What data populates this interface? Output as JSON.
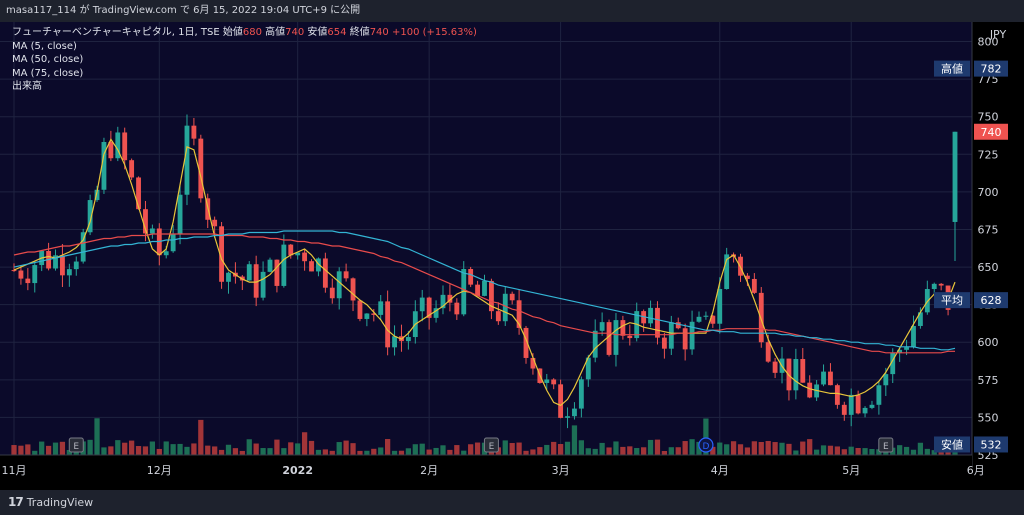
{
  "header": {
    "user": "masa117_114",
    "text_mid": " が ",
    "site": "TradingView.com",
    "text_end": " で 6月 15, 2022 19:04 UTC+9 に公開"
  },
  "legend": {
    "symbol": "フューチャーベンチャーキャピタル, 1日, TSE",
    "open_label": "始値",
    "open": "680",
    "high_label": "高値",
    "high": "740",
    "low_label": "安値",
    "low": "654",
    "close_label": "終値",
    "close": "740",
    "change": "+100 (+15.63%)",
    "ma1": "MA (5, close)",
    "ma2": "MA (50, close)",
    "ma3": "MA (75, close)",
    "volume": "出来高"
  },
  "brand": {
    "name": "TradingView"
  },
  "colors": {
    "up": "#26a69a",
    "down": "#ef5350",
    "ma5": "#e8c53a",
    "ma50": "#e84b4b",
    "ma75": "#33b4d4",
    "background": "#0b0a2a"
  },
  "chart_data": {
    "type": "candlestick",
    "currency": "JPY",
    "y_ticks": [
      800,
      775,
      750,
      725,
      700,
      675,
      650,
      625,
      600,
      575,
      550,
      525
    ],
    "ylim": [
      525,
      813
    ],
    "x_ticks": [
      {
        "label": "11月",
        "index": 0
      },
      {
        "label": "12月",
        "index": 21
      },
      {
        "label": "2022",
        "index": 41
      },
      {
        "label": "2月",
        "index": 60
      },
      {
        "label": "3月",
        "index": 79
      },
      {
        "label": "4月",
        "index": 102
      },
      {
        "label": "5月",
        "index": 121
      },
      {
        "label": "6月",
        "index": 139
      }
    ],
    "price_labels": [
      {
        "label": "高値",
        "value": "782",
        "price": 782,
        "style": "navy"
      },
      {
        "label": "",
        "value": "740",
        "price": 740,
        "style": "red"
      },
      {
        "label": "平均",
        "value": "628",
        "price": 628,
        "style": "navy"
      },
      {
        "label": "安値",
        "value": "532",
        "price": 532,
        "style": "navy"
      }
    ],
    "events": [
      {
        "label": "E",
        "index": 9
      },
      {
        "label": "E",
        "index": 69
      },
      {
        "label": "D",
        "index": 100
      },
      {
        "label": "E",
        "index": 126
      }
    ],
    "series": [
      {
        "name": "MA (5, close)",
        "values": [
          648,
          650,
          652,
          654,
          656,
          657,
          656,
          658,
          660,
          663,
          668,
          680,
          700,
          725,
          735,
          728,
          718,
          705,
          690,
          675,
          662,
          658,
          662,
          680,
          705,
          730,
          728,
          710,
          690,
          670,
          655,
          648,
          645,
          642,
          640,
          640,
          642,
          645,
          650,
          655,
          658,
          660,
          662,
          658,
          652,
          648,
          644,
          640,
          636,
          632,
          628,
          625,
          620,
          615,
          608,
          604,
          602,
          606,
          612,
          615,
          618,
          621,
          624,
          628,
          632,
          634,
          633,
          630,
          627,
          624,
          622,
          620,
          618,
          612,
          602,
          590,
          578,
          568,
          560,
          558,
          562,
          570,
          580,
          590,
          596,
          600,
          604,
          608,
          611,
          613,
          612,
          610,
          609,
          608,
          607,
          606,
          606,
          606,
          606,
          606,
          606,
          620,
          640,
          655,
          658,
          650,
          640,
          628,
          615,
          602,
          592,
          584,
          578,
          574,
          571,
          569,
          568,
          567,
          566,
          566,
          565,
          564,
          565,
          567,
          570,
          574,
          580,
          588,
          596,
          604,
          612,
          620,
          627,
          632,
          630,
          628,
          640
        ]
      },
      {
        "name": "MA (50, close)",
        "values": [
          658,
          659,
          660,
          660,
          661,
          662,
          663,
          664,
          664,
          665,
          666,
          667,
          668,
          669,
          669,
          670,
          670,
          671,
          671,
          671,
          672,
          672,
          672,
          672,
          672,
          672,
          672,
          672,
          672,
          672,
          671,
          671,
          671,
          671,
          670,
          670,
          670,
          669,
          669,
          668,
          668,
          667,
          667,
          666,
          666,
          665,
          664,
          664,
          663,
          662,
          661,
          660,
          659,
          657,
          656,
          654,
          653,
          651,
          649,
          647,
          645,
          643,
          641,
          639,
          637,
          635,
          633,
          631,
          629,
          627,
          626,
          624,
          622,
          621,
          619,
          617,
          616,
          614,
          613,
          611,
          610,
          609,
          608,
          607,
          606,
          606,
          606,
          605,
          605,
          605,
          605,
          605,
          605,
          605,
          605,
          605,
          606,
          606,
          606,
          607,
          607,
          608,
          608,
          609,
          609,
          609,
          609,
          609,
          609,
          608,
          608,
          607,
          606,
          605,
          604,
          603,
          602,
          601,
          600,
          599,
          598,
          597,
          596,
          595,
          594,
          594,
          593,
          593,
          593,
          593,
          593,
          593,
          593,
          593,
          593,
          594,
          594
        ]
      },
      {
        "name": "MA (75, close)",
        "values": [
          650,
          651,
          652,
          653,
          654,
          655,
          656,
          657,
          658,
          659,
          660,
          661,
          662,
          663,
          664,
          664,
          665,
          665,
          666,
          666,
          667,
          667,
          668,
          668,
          669,
          669,
          670,
          670,
          670,
          671,
          671,
          672,
          672,
          672,
          673,
          673,
          673,
          673,
          673,
          674,
          674,
          674,
          674,
          674,
          674,
          674,
          674,
          673,
          673,
          672,
          671,
          670,
          669,
          668,
          667,
          665,
          663,
          662,
          660,
          658,
          656,
          654,
          652,
          650,
          648,
          646,
          645,
          643,
          641,
          640,
          638,
          637,
          636,
          635,
          634,
          633,
          632,
          631,
          630,
          629,
          628,
          627,
          626,
          625,
          624,
          623,
          622,
          621,
          620,
          619,
          618,
          617,
          616,
          615,
          614,
          613,
          612,
          611,
          610,
          609,
          608,
          608,
          607,
          607,
          607,
          606,
          606,
          606,
          606,
          606,
          606,
          605,
          605,
          604,
          604,
          603,
          603,
          602,
          602,
          601,
          601,
          600,
          600,
          599,
          599,
          599,
          598,
          598,
          597,
          597,
          597,
          596,
          596,
          596,
          595,
          595,
          596
        ]
      }
    ]
  }
}
